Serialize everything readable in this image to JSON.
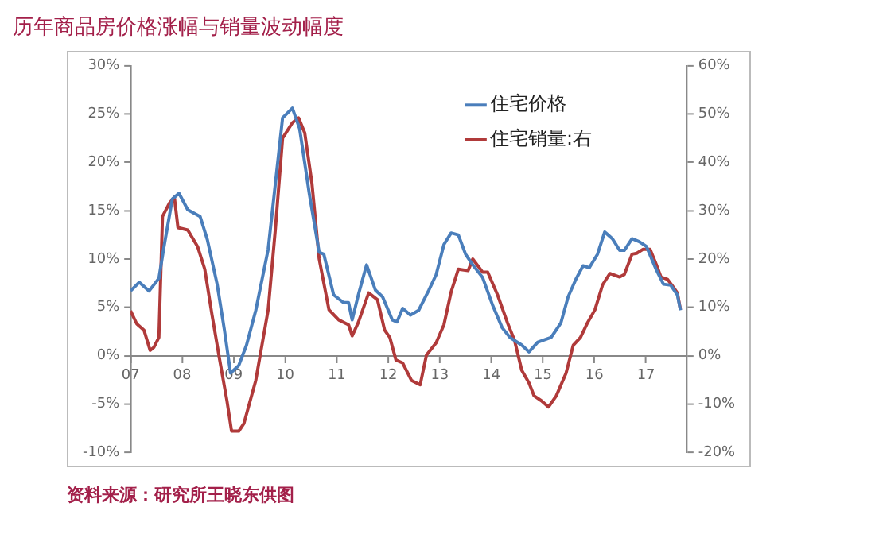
{
  "chart_data": {
    "type": "line",
    "title": "历年商品房价格涨幅与销量波动幅度",
    "annotations": [
      "资料来源：研究所王晓东供图"
    ],
    "xlim": [
      2007,
      2017.8
    ],
    "xticks": [
      {
        "value": 2007,
        "label": "07"
      },
      {
        "value": 2008,
        "label": "08"
      },
      {
        "value": 2009,
        "label": "09"
      },
      {
        "value": 2010,
        "label": "10"
      },
      {
        "value": 2011,
        "label": "11"
      },
      {
        "value": 2012,
        "label": "12"
      },
      {
        "value": 2013,
        "label": "13"
      },
      {
        "value": 2014,
        "label": "14"
      },
      {
        "value": 2015,
        "label": "15"
      },
      {
        "value": 2016,
        "label": "16"
      },
      {
        "value": 2017,
        "label": "17"
      }
    ],
    "ylim": [
      -10,
      30
    ],
    "yticks": [
      {
        "value": -10,
        "label": "-10%"
      },
      {
        "value": -5,
        "label": "-5%"
      },
      {
        "value": 0,
        "label": "0%"
      },
      {
        "value": 5,
        "label": "5%"
      },
      {
        "value": 10,
        "label": "10%"
      },
      {
        "value": 15,
        "label": "15%"
      },
      {
        "value": 20,
        "label": "20%"
      },
      {
        "value": 25,
        "label": "25%"
      },
      {
        "value": 30,
        "label": "30%"
      }
    ],
    "y2lim": [
      -20,
      60
    ],
    "y2ticks": [
      {
        "value": -20,
        "label": "-20%"
      },
      {
        "value": -10,
        "label": "-10%"
      },
      {
        "value": 0,
        "label": "0%"
      },
      {
        "value": 10,
        "label": "10%"
      },
      {
        "value": 20,
        "label": "20%"
      },
      {
        "value": 30,
        "label": "30%"
      },
      {
        "value": 40,
        "label": "40%"
      },
      {
        "value": 50,
        "label": "50%"
      },
      {
        "value": 60,
        "label": "60%"
      }
    ],
    "legend": "top right",
    "marker": "none",
    "line_style": "solid",
    "series": [
      {
        "name": "住宅价格",
        "color": "#4a7ebb",
        "x": [
          2007.0,
          2007.17,
          2007.36,
          2007.55,
          2007.64,
          2007.81,
          2007.94,
          2008.11,
          2008.35,
          2008.49,
          2008.68,
          2008.82,
          2008.94,
          2009.1,
          2009.25,
          2009.43,
          2009.67,
          2009.95,
          2010.14,
          2010.28,
          2010.47,
          2010.66,
          2010.75,
          2010.94,
          2011.13,
          2011.23,
          2011.3,
          2011.42,
          2011.58,
          2011.75,
          2011.89,
          2012.08,
          2012.17,
          2012.28,
          2012.43,
          2012.59,
          2012.79,
          2012.93,
          2013.08,
          2013.22,
          2013.36,
          2013.5,
          2013.64,
          2013.83,
          2014.02,
          2014.21,
          2014.36,
          2014.59,
          2014.73,
          2014.9,
          2015.16,
          2015.35,
          2015.49,
          2015.64,
          2015.78,
          2015.9,
          2016.06,
          2016.2,
          2016.35,
          2016.49,
          2016.58,
          2016.73,
          2016.87,
          2017.01,
          2017.2,
          2017.34,
          2017.48,
          2017.61,
          2017.67
        ],
        "values": [
          6.7,
          7.6,
          6.7,
          8,
          11,
          16.2,
          16.8,
          15.1,
          14.4,
          12,
          7.4,
          2.7,
          -1.8,
          -1,
          1.1,
          4.7,
          11,
          24.6,
          25.6,
          23.5,
          16.7,
          10.7,
          10.5,
          6.3,
          5.5,
          5.5,
          3.7,
          6.3,
          9.4,
          6.8,
          6.1,
          3.7,
          3.5,
          4.9,
          4.2,
          4.7,
          6.8,
          8.4,
          11.5,
          12.7,
          12.5,
          10.5,
          9.4,
          8.1,
          5.3,
          2.9,
          1.9,
          1.1,
          0.4,
          1.4,
          1.9,
          3.4,
          6.1,
          7.9,
          9.3,
          9.1,
          10.5,
          12.8,
          12.1,
          10.9,
          10.9,
          12.1,
          11.8,
          11.3,
          8.9,
          7.4,
          7.3,
          6.3,
          4.7
        ]
      },
      {
        "name": "住宅销量:右",
        "color": "#b03a3a",
        "axis": "y2",
        "x": [
          2007.0,
          2007.12,
          2007.26,
          2007.38,
          2007.45,
          2007.55,
          2007.62,
          2007.75,
          2007.85,
          2007.92,
          2008.11,
          2008.3,
          2008.44,
          2008.58,
          2008.73,
          2008.87,
          2008.96,
          2009.1,
          2009.2,
          2009.43,
          2009.67,
          2009.81,
          2009.95,
          2010.14,
          2010.26,
          2010.38,
          2010.52,
          2010.66,
          2010.85,
          2011.04,
          2011.23,
          2011.3,
          2011.42,
          2011.62,
          2011.79,
          2011.93,
          2012.03,
          2012.15,
          2012.28,
          2012.45,
          2012.62,
          2012.74,
          2012.93,
          2013.08,
          2013.22,
          2013.36,
          2013.55,
          2013.64,
          2013.83,
          2013.93,
          2014.12,
          2014.31,
          2014.45,
          2014.59,
          2014.73,
          2014.83,
          2014.97,
          2015.11,
          2015.26,
          2015.45,
          2015.59,
          2015.73,
          2015.87,
          2016.01,
          2016.16,
          2016.3,
          2016.49,
          2016.58,
          2016.73,
          2016.82,
          2016.94,
          2017.08,
          2017.2,
          2017.29,
          2017.42,
          2017.53,
          2017.61,
          2017.67
        ],
        "values": [
          9.3,
          6.6,
          5.3,
          1.1,
          1.7,
          3.8,
          28.8,
          31.5,
          32.8,
          26.5,
          26,
          22.6,
          17.9,
          8.5,
          -0.9,
          -9.3,
          -15.6,
          -15.6,
          -14,
          -5.1,
          9.5,
          26.2,
          45,
          48.2,
          49.2,
          46.1,
          35.6,
          20,
          9.5,
          7.4,
          6.4,
          4.1,
          6.9,
          13,
          11.6,
          5.3,
          3.8,
          -0.9,
          -1.5,
          -5.1,
          -6,
          0.1,
          2.7,
          6.4,
          13.2,
          17.9,
          17.6,
          20,
          17.3,
          17.3,
          12.6,
          6.9,
          3.2,
          -3,
          -5.6,
          -8.3,
          -9.3,
          -10.6,
          -8.3,
          -3.6,
          2.2,
          3.8,
          6.9,
          9.5,
          14.7,
          17,
          16.3,
          16.8,
          21,
          21.2,
          22,
          22,
          18.9,
          16.3,
          15.8,
          14.2,
          13,
          9.5
        ]
      }
    ]
  }
}
